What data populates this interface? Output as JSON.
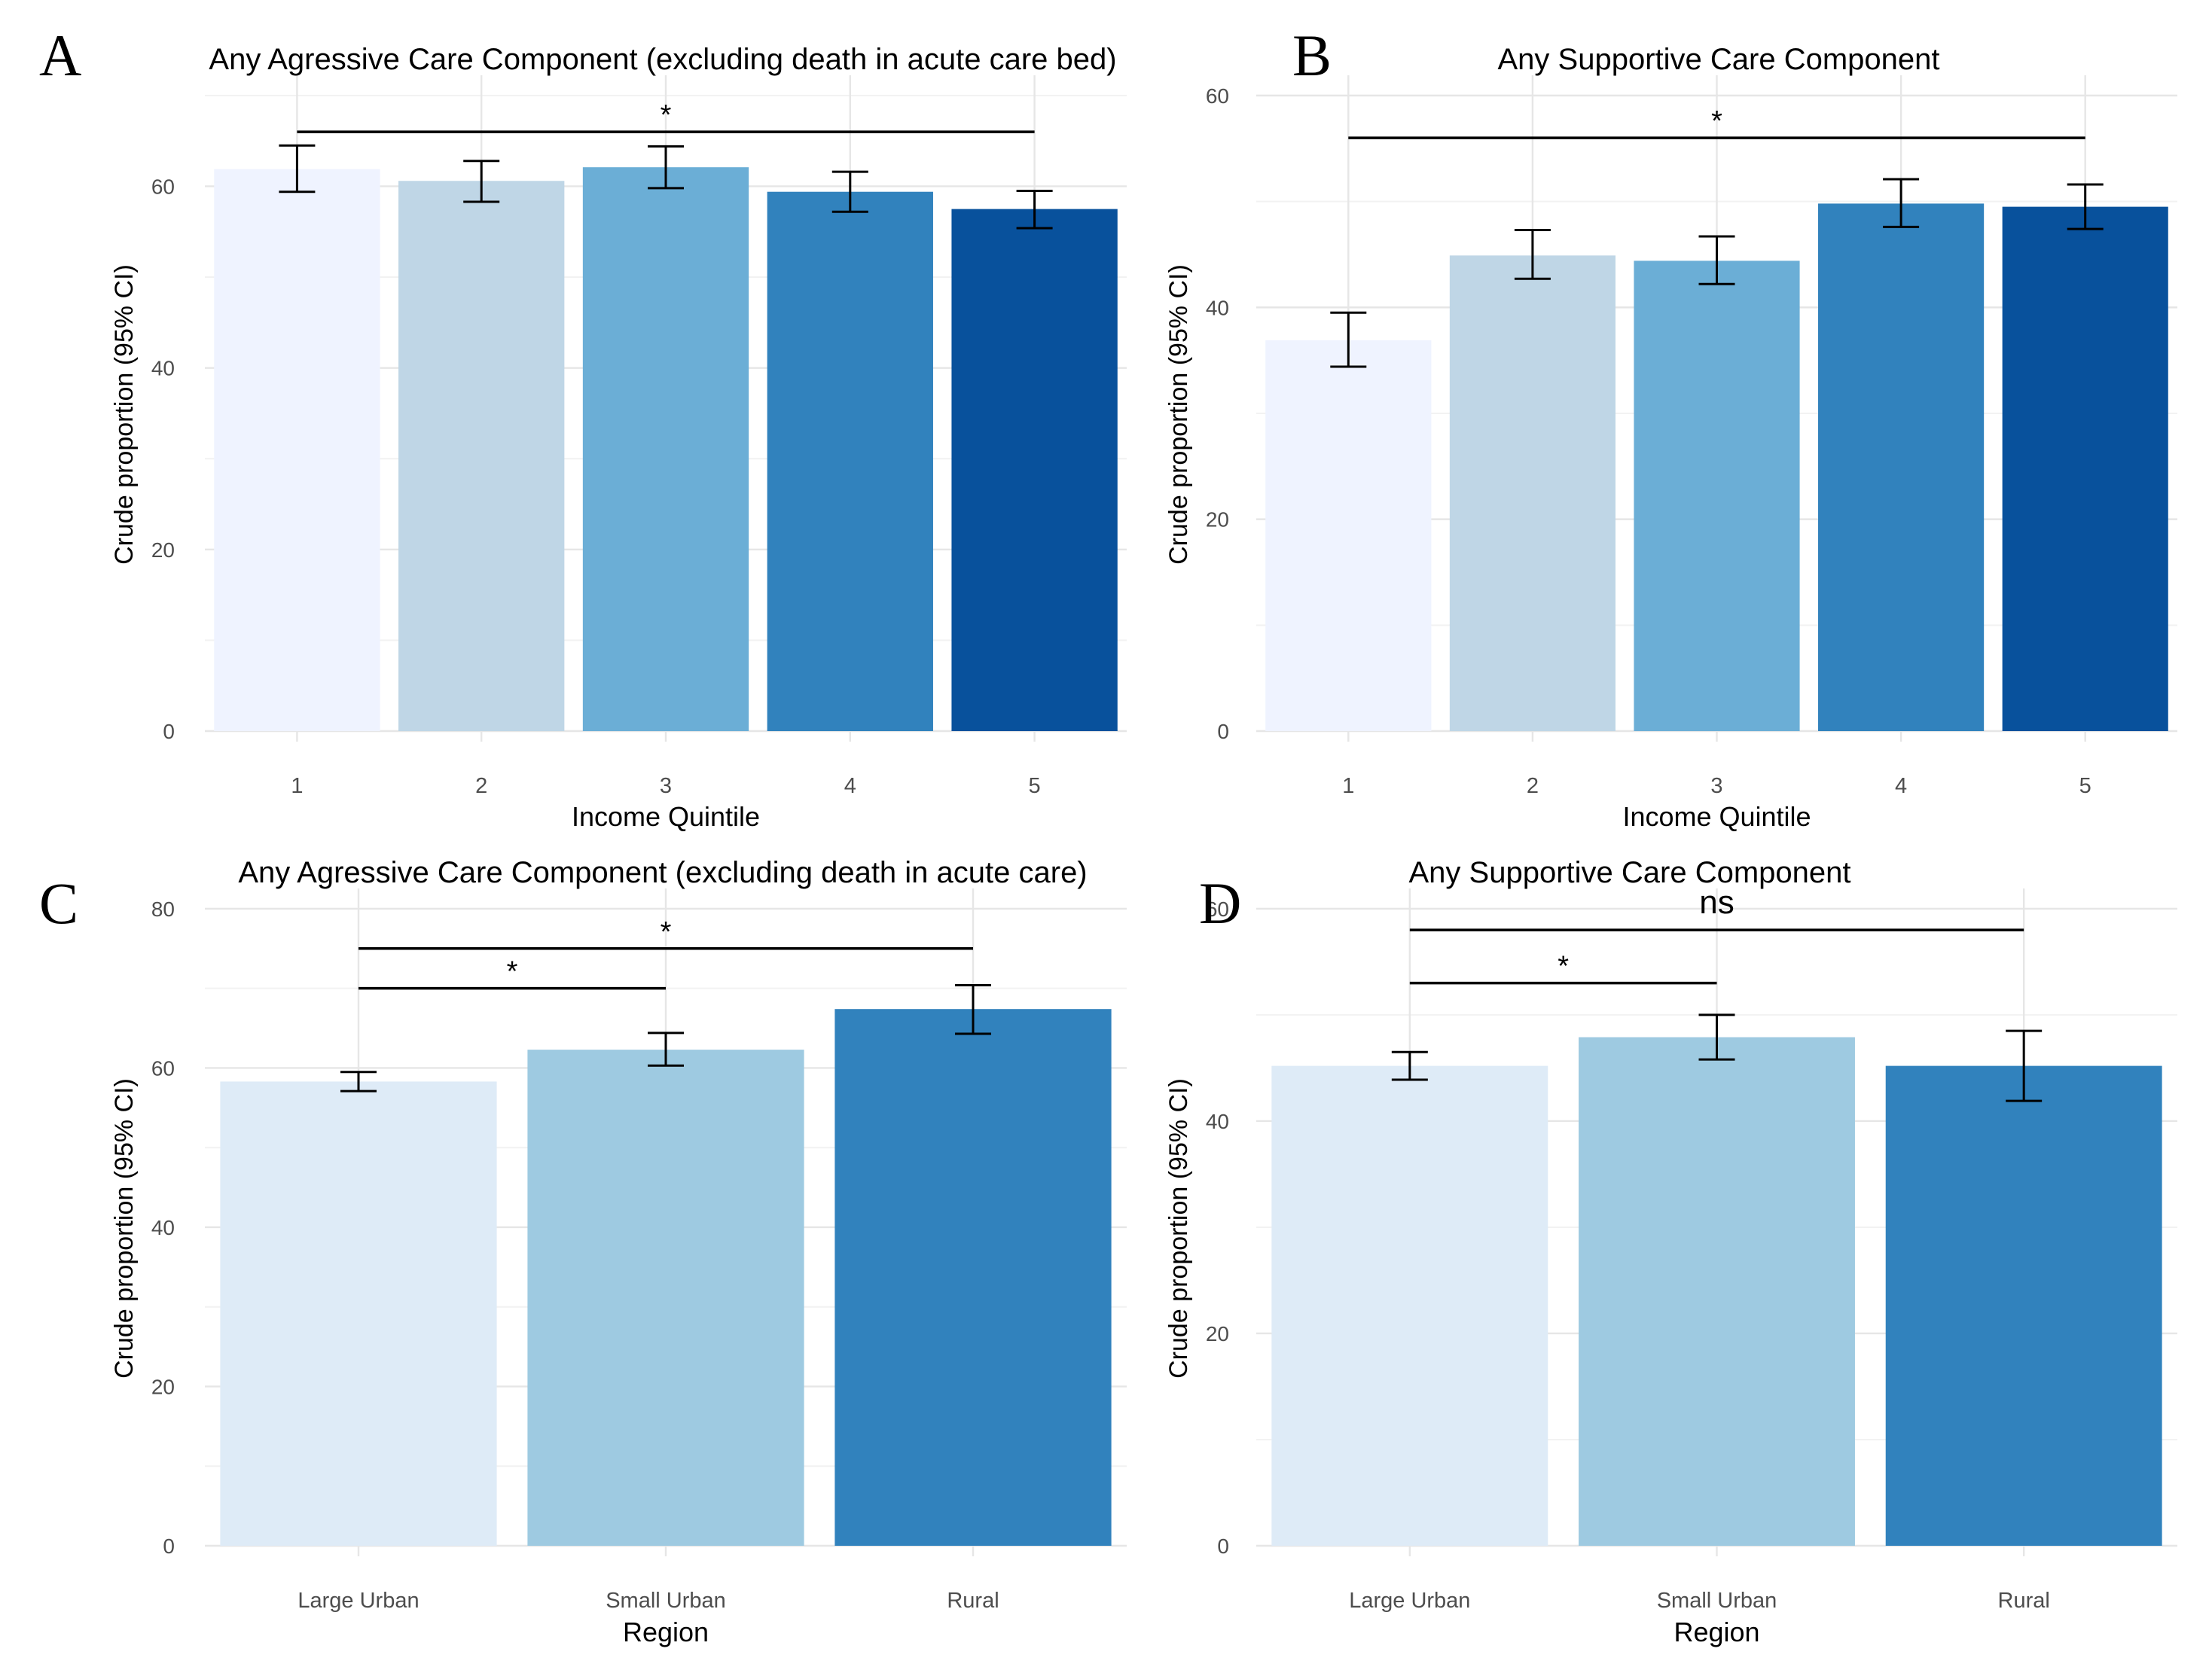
{
  "chart_data": [
    {
      "panel": "A",
      "type": "bar",
      "title": "Any Agressive Care Component (excluding death in acute care bed)",
      "xlabel": "Income Quintile",
      "ylabel": "Crude proportion (95% CI)",
      "categories": [
        "1",
        "2",
        "3",
        "4",
        "5"
      ],
      "values": [
        61.9,
        60.6,
        62.1,
        59.4,
        57.5
      ],
      "ci_lower": [
        59.4,
        58.3,
        59.8,
        57.2,
        55.4
      ],
      "ci_upper": [
        64.5,
        62.8,
        64.4,
        61.6,
        59.5
      ],
      "colors": [
        "#eff3ff",
        "#bfd6e6",
        "#6baed6",
        "#3182bd",
        "#08519c"
      ],
      "ylim": [
        0,
        70
      ],
      "yticks": [
        0,
        20,
        40,
        60
      ],
      "grid": true,
      "significance": [
        {
          "from": 0,
          "to": 4,
          "y": 66,
          "label": "*"
        }
      ]
    },
    {
      "panel": "B",
      "type": "bar",
      "title": "Any Supportive Care Component",
      "xlabel": "Income Quintile",
      "ylabel": "Crude proportion (95% CI)",
      "categories": [
        "1",
        "2",
        "3",
        "4",
        "5"
      ],
      "values": [
        36.9,
        44.9,
        44.4,
        49.8,
        49.5
      ],
      "ci_lower": [
        34.4,
        42.7,
        42.2,
        47.6,
        47.4
      ],
      "ci_upper": [
        39.5,
        47.3,
        46.7,
        52.1,
        51.6
      ],
      "colors": [
        "#eff3ff",
        "#bfd6e6",
        "#6baed6",
        "#3182bd",
        "#08519c"
      ],
      "ylim": [
        0,
        60
      ],
      "yticks": [
        0,
        20,
        40,
        60
      ],
      "grid": true,
      "significance": [
        {
          "from": 0,
          "to": 4,
          "y": 56,
          "label": "*"
        }
      ]
    },
    {
      "panel": "C",
      "type": "bar",
      "title": "Any Agressive Care Component (excluding death in acute care)",
      "xlabel": "Region",
      "ylabel": "Crude proportion (95% CI)",
      "categories": [
        "Large Urban",
        "Small Urban",
        "Rural"
      ],
      "values": [
        58.3,
        62.3,
        67.4
      ],
      "ci_lower": [
        57.1,
        60.3,
        64.3
      ],
      "ci_upper": [
        59.5,
        64.4,
        70.4
      ],
      "colors": [
        "#deebf7",
        "#9ecae1",
        "#3182bd"
      ],
      "ylim": [
        0,
        80
      ],
      "yticks": [
        0,
        20,
        40,
        60,
        80
      ],
      "grid": true,
      "significance": [
        {
          "from": 0,
          "to": 1,
          "y": 70,
          "label": "*"
        },
        {
          "from": 0,
          "to": 2,
          "y": 75,
          "label": "*"
        }
      ]
    },
    {
      "panel": "D",
      "type": "bar",
      "title": "Any Supportive Care Component",
      "xlabel": "Region",
      "ylabel": "Crude proportion (95% CI)",
      "categories": [
        "Large Urban",
        "Small Urban",
        "Rural"
      ],
      "values": [
        45.2,
        47.9,
        45.2
      ],
      "ci_lower": [
        43.9,
        45.8,
        41.9
      ],
      "ci_upper": [
        46.5,
        50.0,
        48.5
      ],
      "colors": [
        "#deebf7",
        "#9ecae1",
        "#3182bd"
      ],
      "ylim": [
        0,
        60
      ],
      "yticks": [
        0,
        20,
        40,
        60
      ],
      "grid": true,
      "significance": [
        {
          "from": 0,
          "to": 1,
          "y": 53,
          "label": "*"
        },
        {
          "from": 0,
          "to": 2,
          "y": 58,
          "label": "ns"
        }
      ]
    }
  ]
}
